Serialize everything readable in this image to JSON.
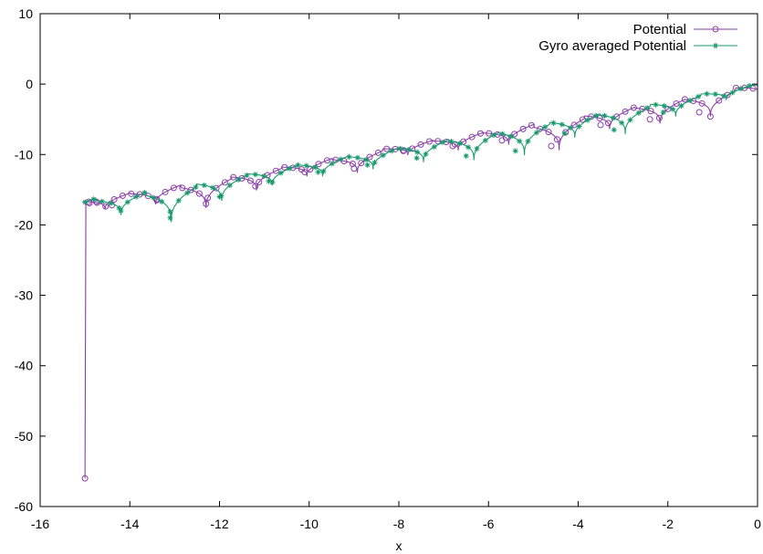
{
  "chart_data": {
    "type": "line",
    "title": "",
    "xlabel": "x",
    "ylabel": "",
    "xlim": [
      -16,
      0
    ],
    "ylim": [
      -60,
      10
    ],
    "xticks": [
      -16,
      -14,
      -12,
      -10,
      -8,
      -6,
      -4,
      -2,
      0
    ],
    "yticks": [
      -60,
      -50,
      -40,
      -30,
      -20,
      -10,
      0,
      10
    ],
    "xtick_labels": [
      "-16",
      "-14",
      "-12",
      "-10",
      "-8",
      "-6",
      "-4",
      "-2",
      "0"
    ],
    "ytick_labels": [
      "-60",
      "-50",
      "-40",
      "-30",
      "-20",
      "-10",
      "0",
      "10"
    ],
    "grid": false,
    "legend_position": "top-right",
    "series": [
      {
        "name": "Potential",
        "color": "#8b3fa8",
        "marker": "circle",
        "x_start": -15.0,
        "x_end": 0.0,
        "dip_spacing": 1.125,
        "first_dip_x": -14.55,
        "drop_point": {
          "x": -15.0,
          "y": -56.0
        },
        "markers": [
          {
            "x": -14.9,
            "y": -16.9
          },
          {
            "x": -14.75,
            "y": -16.7
          },
          {
            "x": -14.4,
            "y": -17.2
          },
          {
            "x": -13.4,
            "y": -16.5
          },
          {
            "x": -12.3,
            "y": -17.0
          },
          {
            "x": -11.2,
            "y": -14.5
          },
          {
            "x": -10.1,
            "y": -12.5
          },
          {
            "x": -9.0,
            "y": -12.0
          },
          {
            "x": -7.9,
            "y": -9.5
          },
          {
            "x": -6.8,
            "y": -8.8
          },
          {
            "x": -5.7,
            "y": -8.0
          },
          {
            "x": -4.6,
            "y": -8.8
          },
          {
            "x": -3.5,
            "y": -5.8
          },
          {
            "x": -2.4,
            "y": -5.0
          },
          {
            "x": -1.3,
            "y": -4.0
          }
        ]
      },
      {
        "name": "Gyro averaged Potential",
        "color": "#1a9a6c",
        "marker": "star",
        "x_start": -15.0,
        "x_end": 0.0,
        "dip_spacing": 1.125,
        "first_dip_x": -14.2,
        "markers": [
          {
            "x": -14.2,
            "y": -18.0
          },
          {
            "x": -13.1,
            "y": -19.0
          },
          {
            "x": -12.0,
            "y": -16.0
          },
          {
            "x": -10.9,
            "y": -13.8
          },
          {
            "x": -9.8,
            "y": -12.5
          },
          {
            "x": -8.7,
            "y": -11.5
          },
          {
            "x": -7.6,
            "y": -10.5
          },
          {
            "x": -6.5,
            "y": -10.2
          },
          {
            "x": -5.4,
            "y": -9.5
          },
          {
            "x": -4.3,
            "y": -7.0
          },
          {
            "x": -3.2,
            "y": -6.5
          },
          {
            "x": -2.1,
            "y": -4.0
          }
        ]
      }
    ]
  }
}
